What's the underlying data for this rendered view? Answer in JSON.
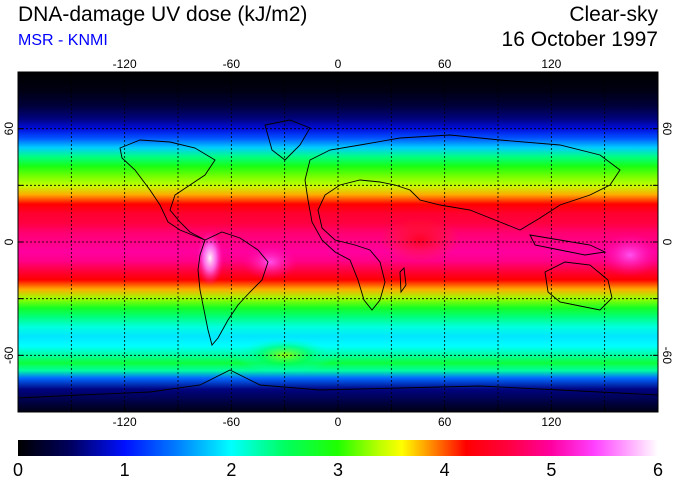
{
  "header": {
    "title": "DNA-damage UV dose (kJ/m2)",
    "subtitle": "MSR - KNMI",
    "mode": "Clear-sky",
    "date": "16 October 1997"
  },
  "colors": {
    "subtitle": "#0000ff",
    "grid": "#000000",
    "coast": "#000000"
  },
  "map": {
    "projection": "equirectangular",
    "lon_range": [
      -180,
      180
    ],
    "lat_range": [
      -90,
      90
    ],
    "grid_lons": [
      -150,
      -120,
      -90,
      -60,
      -30,
      0,
      30,
      60,
      90,
      120,
      150
    ],
    "grid_lats": [
      -60,
      -30,
      0,
      30,
      60
    ],
    "lon_labels": [
      {
        "value": -120,
        "text": "-120"
      },
      {
        "value": -60,
        "text": "-60"
      },
      {
        "value": 0,
        "text": "0"
      },
      {
        "value": 60,
        "text": "60"
      },
      {
        "value": 120,
        "text": "120"
      }
    ],
    "lat_labels": [
      {
        "value": 60,
        "text": "60"
      },
      {
        "value": 0,
        "text": "0"
      },
      {
        "value": -60,
        "text": "-60"
      }
    ],
    "lat_profile": [
      {
        "lat": 90,
        "v": 0.0
      },
      {
        "lat": 80,
        "v": 0.1
      },
      {
        "lat": 72,
        "v": 0.3
      },
      {
        "lat": 65,
        "v": 0.6
      },
      {
        "lat": 60,
        "v": 0.9
      },
      {
        "lat": 55,
        "v": 1.3
      },
      {
        "lat": 50,
        "v": 1.8
      },
      {
        "lat": 45,
        "v": 2.4
      },
      {
        "lat": 40,
        "v": 2.9
      },
      {
        "lat": 35,
        "v": 3.2
      },
      {
        "lat": 30,
        "v": 3.4
      },
      {
        "lat": 25,
        "v": 3.8
      },
      {
        "lat": 20,
        "v": 4.2
      },
      {
        "lat": 15,
        "v": 4.5
      },
      {
        "lat": 10,
        "v": 4.6
      },
      {
        "lat": 5,
        "v": 4.8
      },
      {
        "lat": 0,
        "v": 4.9
      },
      {
        "lat": -5,
        "v": 5.0
      },
      {
        "lat": -10,
        "v": 4.9
      },
      {
        "lat": -15,
        "v": 4.6
      },
      {
        "lat": -20,
        "v": 4.2
      },
      {
        "lat": -25,
        "v": 3.8
      },
      {
        "lat": -30,
        "v": 3.3
      },
      {
        "lat": -35,
        "v": 2.8
      },
      {
        "lat": -40,
        "v": 2.4
      },
      {
        "lat": -45,
        "v": 2.1
      },
      {
        "lat": -50,
        "v": 1.9
      },
      {
        "lat": -55,
        "v": 2.0
      },
      {
        "lat": -60,
        "v": 2.3
      },
      {
        "lat": -64,
        "v": 2.7
      },
      {
        "lat": -68,
        "v": 2.3
      },
      {
        "lat": -72,
        "v": 1.4
      },
      {
        "lat": -78,
        "v": 0.6
      },
      {
        "lat": -90,
        "v": 0.1
      }
    ]
  },
  "colorbar": {
    "min": 0,
    "max": 6,
    "stops": [
      {
        "v": 0.0,
        "color": "#000000"
      },
      {
        "v": 0.5,
        "color": "#000060"
      },
      {
        "v": 1.0,
        "color": "#0010ff"
      },
      {
        "v": 1.5,
        "color": "#0080ff"
      },
      {
        "v": 2.0,
        "color": "#00ffff"
      },
      {
        "v": 2.5,
        "color": "#00ff60"
      },
      {
        "v": 3.0,
        "color": "#20ff00"
      },
      {
        "v": 3.4,
        "color": "#c0ff00"
      },
      {
        "v": 3.6,
        "color": "#ffff00"
      },
      {
        "v": 3.9,
        "color": "#ff8000"
      },
      {
        "v": 4.2,
        "color": "#ff0000"
      },
      {
        "v": 4.6,
        "color": "#ff0040"
      },
      {
        "v": 5.0,
        "color": "#ff00a0"
      },
      {
        "v": 5.4,
        "color": "#ff40ff"
      },
      {
        "v": 6.0,
        "color": "#ffffff"
      }
    ],
    "labels": [
      "0",
      "1",
      "2",
      "3",
      "4",
      "5",
      "6"
    ]
  }
}
